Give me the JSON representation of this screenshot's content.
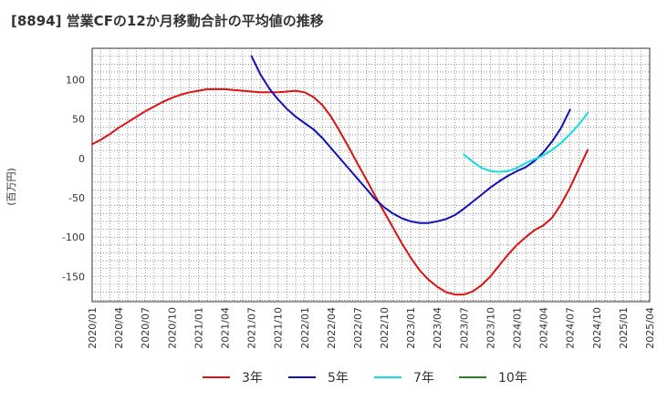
{
  "chart_data": {
    "type": "line",
    "title": "[8894]  営業CFの12か月移動合計の平均値の推移",
    "ylabel": "(百万円)",
    "xlabel": "",
    "ylim": [
      -182,
      140
    ],
    "yticks": [
      100,
      50,
      0,
      -50,
      -100,
      -150
    ],
    "xlim": [
      "2020-01",
      "2025-04"
    ],
    "xticks": [
      "2020/01",
      "2020/04",
      "2020/07",
      "2020/10",
      "2021/01",
      "2021/04",
      "2021/07",
      "2021/10",
      "2022/01",
      "2022/04",
      "2022/07",
      "2022/10",
      "2023/01",
      "2023/04",
      "2023/07",
      "2023/10",
      "2024/01",
      "2024/04",
      "2024/07",
      "2024/10",
      "2025/01",
      "2025/04"
    ],
    "grid": true,
    "legend_position": "bottom",
    "series": [
      {
        "name": "3年",
        "color": "#dd1111",
        "points": [
          [
            "2020-01",
            18
          ],
          [
            "2020-02",
            24
          ],
          [
            "2020-03",
            31
          ],
          [
            "2020-04",
            39
          ],
          [
            "2020-05",
            46
          ],
          [
            "2020-06",
            53
          ],
          [
            "2020-07",
            60
          ],
          [
            "2020-08",
            66
          ],
          [
            "2020-09",
            72
          ],
          [
            "2020-10",
            77
          ],
          [
            "2020-11",
            81
          ],
          [
            "2020-12",
            84
          ],
          [
            "2021-01",
            86
          ],
          [
            "2021-02",
            88
          ],
          [
            "2021-03",
            88
          ],
          [
            "2021-04",
            88
          ],
          [
            "2021-05",
            87
          ],
          [
            "2021-06",
            86
          ],
          [
            "2021-07",
            85
          ],
          [
            "2021-08",
            84
          ],
          [
            "2021-09",
            84
          ],
          [
            "2021-10",
            84
          ],
          [
            "2021-11",
            85
          ],
          [
            "2021-12",
            86
          ],
          [
            "2022-01",
            84
          ],
          [
            "2022-02",
            78
          ],
          [
            "2022-03",
            68
          ],
          [
            "2022-04",
            53
          ],
          [
            "2022-05",
            34
          ],
          [
            "2022-06",
            14
          ],
          [
            "2022-07",
            -7
          ],
          [
            "2022-08",
            -27
          ],
          [
            "2022-09",
            -48
          ],
          [
            "2022-10",
            -68
          ],
          [
            "2022-11",
            -88
          ],
          [
            "2022-12",
            -108
          ],
          [
            "2023-01",
            -126
          ],
          [
            "2023-02",
            -142
          ],
          [
            "2023-03",
            -154
          ],
          [
            "2023-04",
            -163
          ],
          [
            "2023-05",
            -170
          ],
          [
            "2023-06",
            -173
          ],
          [
            "2023-07",
            -173
          ],
          [
            "2023-08",
            -169
          ],
          [
            "2023-09",
            -161
          ],
          [
            "2023-10",
            -150
          ],
          [
            "2023-11",
            -136
          ],
          [
            "2023-12",
            -122
          ],
          [
            "2024-01",
            -110
          ],
          [
            "2024-02",
            -100
          ],
          [
            "2024-03",
            -91
          ],
          [
            "2024-04",
            -85
          ],
          [
            "2024-05",
            -75
          ],
          [
            "2024-06",
            -58
          ],
          [
            "2024-07",
            -37
          ],
          [
            "2024-08",
            -13
          ],
          [
            "2024-09",
            11
          ]
        ]
      },
      {
        "name": "5年",
        "color": "#1111bb",
        "points": [
          [
            "2021-07",
            130
          ],
          [
            "2021-08",
            107
          ],
          [
            "2021-09",
            89
          ],
          [
            "2021-10",
            75
          ],
          [
            "2021-11",
            63
          ],
          [
            "2021-12",
            53
          ],
          [
            "2022-01",
            45
          ],
          [
            "2022-02",
            37
          ],
          [
            "2022-03",
            26
          ],
          [
            "2022-04",
            13
          ],
          [
            "2022-05",
            0
          ],
          [
            "2022-06",
            -13
          ],
          [
            "2022-07",
            -26
          ],
          [
            "2022-08",
            -39
          ],
          [
            "2022-09",
            -52
          ],
          [
            "2022-10",
            -62
          ],
          [
            "2022-11",
            -70
          ],
          [
            "2022-12",
            -76
          ],
          [
            "2023-01",
            -80
          ],
          [
            "2023-02",
            -82
          ],
          [
            "2023-03",
            -82
          ],
          [
            "2023-04",
            -80
          ],
          [
            "2023-05",
            -77
          ],
          [
            "2023-06",
            -72
          ],
          [
            "2023-07",
            -64
          ],
          [
            "2023-08",
            -55
          ],
          [
            "2023-09",
            -46
          ],
          [
            "2023-10",
            -37
          ],
          [
            "2023-11",
            -29
          ],
          [
            "2023-12",
            -22
          ],
          [
            "2024-01",
            -16
          ],
          [
            "2024-02",
            -11
          ],
          [
            "2024-03",
            -3
          ],
          [
            "2024-04",
            8
          ],
          [
            "2024-05",
            22
          ],
          [
            "2024-06",
            39
          ],
          [
            "2024-07",
            62
          ]
        ]
      },
      {
        "name": "7年",
        "color": "#11dddd",
        "points": [
          [
            "2023-07",
            5
          ],
          [
            "2023-08",
            -4
          ],
          [
            "2023-09",
            -12
          ],
          [
            "2023-10",
            -16
          ],
          [
            "2023-11",
            -17
          ],
          [
            "2023-12",
            -16
          ],
          [
            "2024-01",
            -12
          ],
          [
            "2024-02",
            -6
          ],
          [
            "2024-03",
            -1
          ],
          [
            "2024-04",
            4
          ],
          [
            "2024-05",
            11
          ],
          [
            "2024-06",
            20
          ],
          [
            "2024-07",
            31
          ],
          [
            "2024-08",
            43
          ],
          [
            "2024-09",
            58
          ]
        ]
      },
      {
        "name": "10年",
        "color": "#228822",
        "points": []
      }
    ]
  }
}
